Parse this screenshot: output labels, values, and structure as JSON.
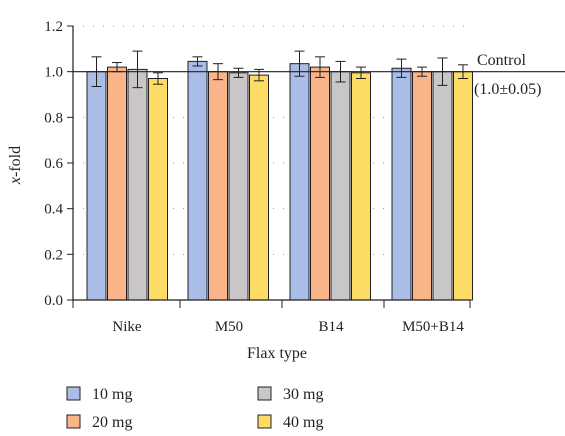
{
  "chart_data": {
    "type": "bar",
    "title": "",
    "xlabel": "Flax type",
    "ylabel": "x-fold",
    "ylabel_italic_part": "x",
    "ylabel_rest": "-fold",
    "ylim": [
      0,
      1.2
    ],
    "yticks": [
      "0.0",
      "0.2",
      "0.4",
      "0.6",
      "0.8",
      "1.0",
      "1.2"
    ],
    "ytick_values": [
      0,
      0.2,
      0.4,
      0.6,
      0.8,
      1.0,
      1.2
    ],
    "grid": "dotted horizontal",
    "categories": [
      "Nike",
      "M50",
      "B14",
      "M50+B14"
    ],
    "series": [
      {
        "name": "10 mg",
        "color": "#a9bde6",
        "values": [
          1.0,
          1.045,
          1.035,
          1.015
        ],
        "errors": [
          0.065,
          0.02,
          0.055,
          0.04
        ]
      },
      {
        "name": "20 mg",
        "color": "#f9b48a",
        "values": [
          1.02,
          1.0,
          1.02,
          1.0
        ],
        "errors": [
          0.02,
          0.035,
          0.045,
          0.02
        ]
      },
      {
        "name": "30 mg",
        "color": "#c8c6c6",
        "values": [
          1.01,
          0.995,
          1.0,
          1.0
        ],
        "errors": [
          0.08,
          0.02,
          0.045,
          0.06
        ]
      },
      {
        "name": "40 mg",
        "color": "#fddc66",
        "values": [
          0.97,
          0.985,
          0.995,
          1.0
        ],
        "errors": [
          0.025,
          0.025,
          0.025,
          0.03
        ]
      }
    ],
    "reference_line": {
      "value": 1.0,
      "label": "Control",
      "sublabel": "(1.0±0.05)"
    },
    "legend": {
      "placement": "bottom",
      "columns": 2
    }
  }
}
